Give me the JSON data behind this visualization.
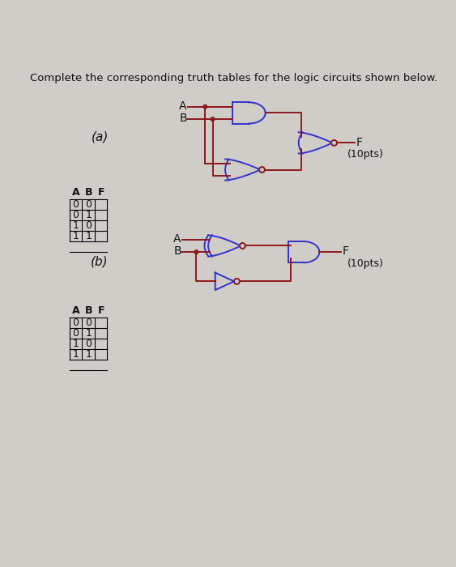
{
  "title": "Complete the corresponding truth tables for the logic circuits shown below.",
  "title_fontsize": 9.5,
  "bg_color": "#d0ccc8",
  "wire_color": "#8B1A1A",
  "gate_color": "#3333cc",
  "dot_color": "#8B1A1A",
  "bubble_color": "#8B1A1A",
  "text_color": "#111111",
  "pts_label": "(10pts)",
  "section_a_label": "(a)",
  "section_b_label": "(b)",
  "table_headers": [
    "A",
    "B",
    "F"
  ],
  "table_rows": [
    [
      "0",
      "0",
      ""
    ],
    [
      "0",
      "1",
      ""
    ],
    [
      "1",
      "0",
      ""
    ],
    [
      "1",
      "1",
      ""
    ]
  ]
}
